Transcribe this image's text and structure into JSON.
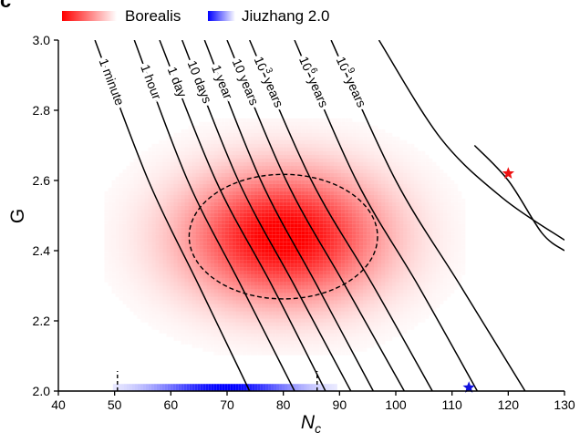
{
  "panel_letter": "c",
  "chart_data": {
    "type": "heatmap",
    "xlabel": "N",
    "xlabel_sub": "c",
    "ylabel": "G",
    "xlim": [
      40,
      130
    ],
    "ylim": [
      2.0,
      3.0
    ],
    "x_ticks": [
      40,
      50,
      60,
      70,
      80,
      90,
      100,
      110,
      120,
      130
    ],
    "y_ticks": [
      "2.0",
      "2.2",
      "2.4",
      "2.6",
      "2.8",
      "3.0"
    ],
    "legend": {
      "placement": "top-left",
      "entries": [
        {
          "name": "Borealis",
          "color": "#ff0000"
        },
        {
          "name": "Jiuzhang 2.0",
          "color": "#0000ff"
        }
      ]
    },
    "series": [
      {
        "name": "Borealis",
        "kind": "density",
        "color": "#ff0000",
        "center": [
          80,
          2.44
        ],
        "ellipse": {
          "x_range": [
            63.5,
            97
          ],
          "y_range": [
            2.265,
            2.62
          ]
        }
      },
      {
        "name": "Jiuzhang 2.0",
        "kind": "band",
        "color": "#0000ff",
        "center_x": 70,
        "x_range": [
          50.5,
          86
        ],
        "y": 2.01
      }
    ],
    "contours": [
      {
        "label": "1 minute",
        "points": [
          [
            46.5,
            3.0
          ],
          [
            56,
            2.6
          ],
          [
            65,
            2.3
          ],
          [
            74,
            2.0
          ]
        ]
      },
      {
        "label": "1 hour",
        "points": [
          [
            53.5,
            3.0
          ],
          [
            63,
            2.6
          ],
          [
            72.5,
            2.3
          ],
          [
            82,
            2.0
          ]
        ]
      },
      {
        "label": "1 day",
        "points": [
          [
            58,
            3.0
          ],
          [
            68,
            2.6
          ],
          [
            78,
            2.3
          ],
          [
            87.5,
            2.0
          ]
        ]
      },
      {
        "label": "10 days",
        "points": [
          [
            62,
            3.0
          ],
          [
            72,
            2.6
          ],
          [
            82,
            2.3
          ],
          [
            92,
            2.0
          ]
        ]
      },
      {
        "label": "1 year",
        "points": [
          [
            66,
            3.0
          ],
          [
            76,
            2.6
          ],
          [
            86,
            2.3
          ],
          [
            96,
            2.0
          ]
        ]
      },
      {
        "label": "10 years",
        "points": [
          [
            70,
            3.0
          ],
          [
            80.5,
            2.6
          ],
          [
            91,
            2.3
          ],
          [
            101.5,
            2.0
          ]
        ]
      },
      {
        "label": "10",
        "label_sup": "3",
        "label_suffix": " years",
        "points": [
          [
            74,
            3.0
          ],
          [
            85,
            2.6
          ],
          [
            96,
            2.3
          ],
          [
            106.5,
            2.0
          ]
        ]
      },
      {
        "label": "10",
        "label_sup": "6",
        "label_suffix": " years",
        "points": [
          [
            82,
            3.0
          ],
          [
            93,
            2.6
          ],
          [
            104,
            2.3
          ],
          [
            114.5,
            2.0
          ]
        ]
      },
      {
        "label": "10",
        "label_sup": "9",
        "label_suffix": " years",
        "points": [
          [
            88.5,
            3.0
          ],
          [
            100,
            2.6
          ],
          [
            111.5,
            2.3
          ],
          [
            123,
            2.0
          ]
        ]
      },
      {
        "label": "",
        "points": [
          [
            97,
            3.0
          ],
          [
            108,
            2.72
          ],
          [
            119,
            2.55
          ],
          [
            130,
            2.43
          ]
        ]
      },
      {
        "label": "",
        "points": [
          [
            114,
            2.7
          ],
          [
            120,
            2.6
          ],
          [
            126,
            2.45
          ],
          [
            130,
            2.4
          ]
        ]
      }
    ],
    "markers": [
      {
        "name": "Borealis",
        "shape": "star",
        "x": 120,
        "y": 2.62,
        "color": "#ee1111"
      },
      {
        "name": "Jiuzhang 2.0",
        "shape": "star",
        "x": 113,
        "y": 2.01,
        "color": "#1111dd"
      }
    ]
  }
}
